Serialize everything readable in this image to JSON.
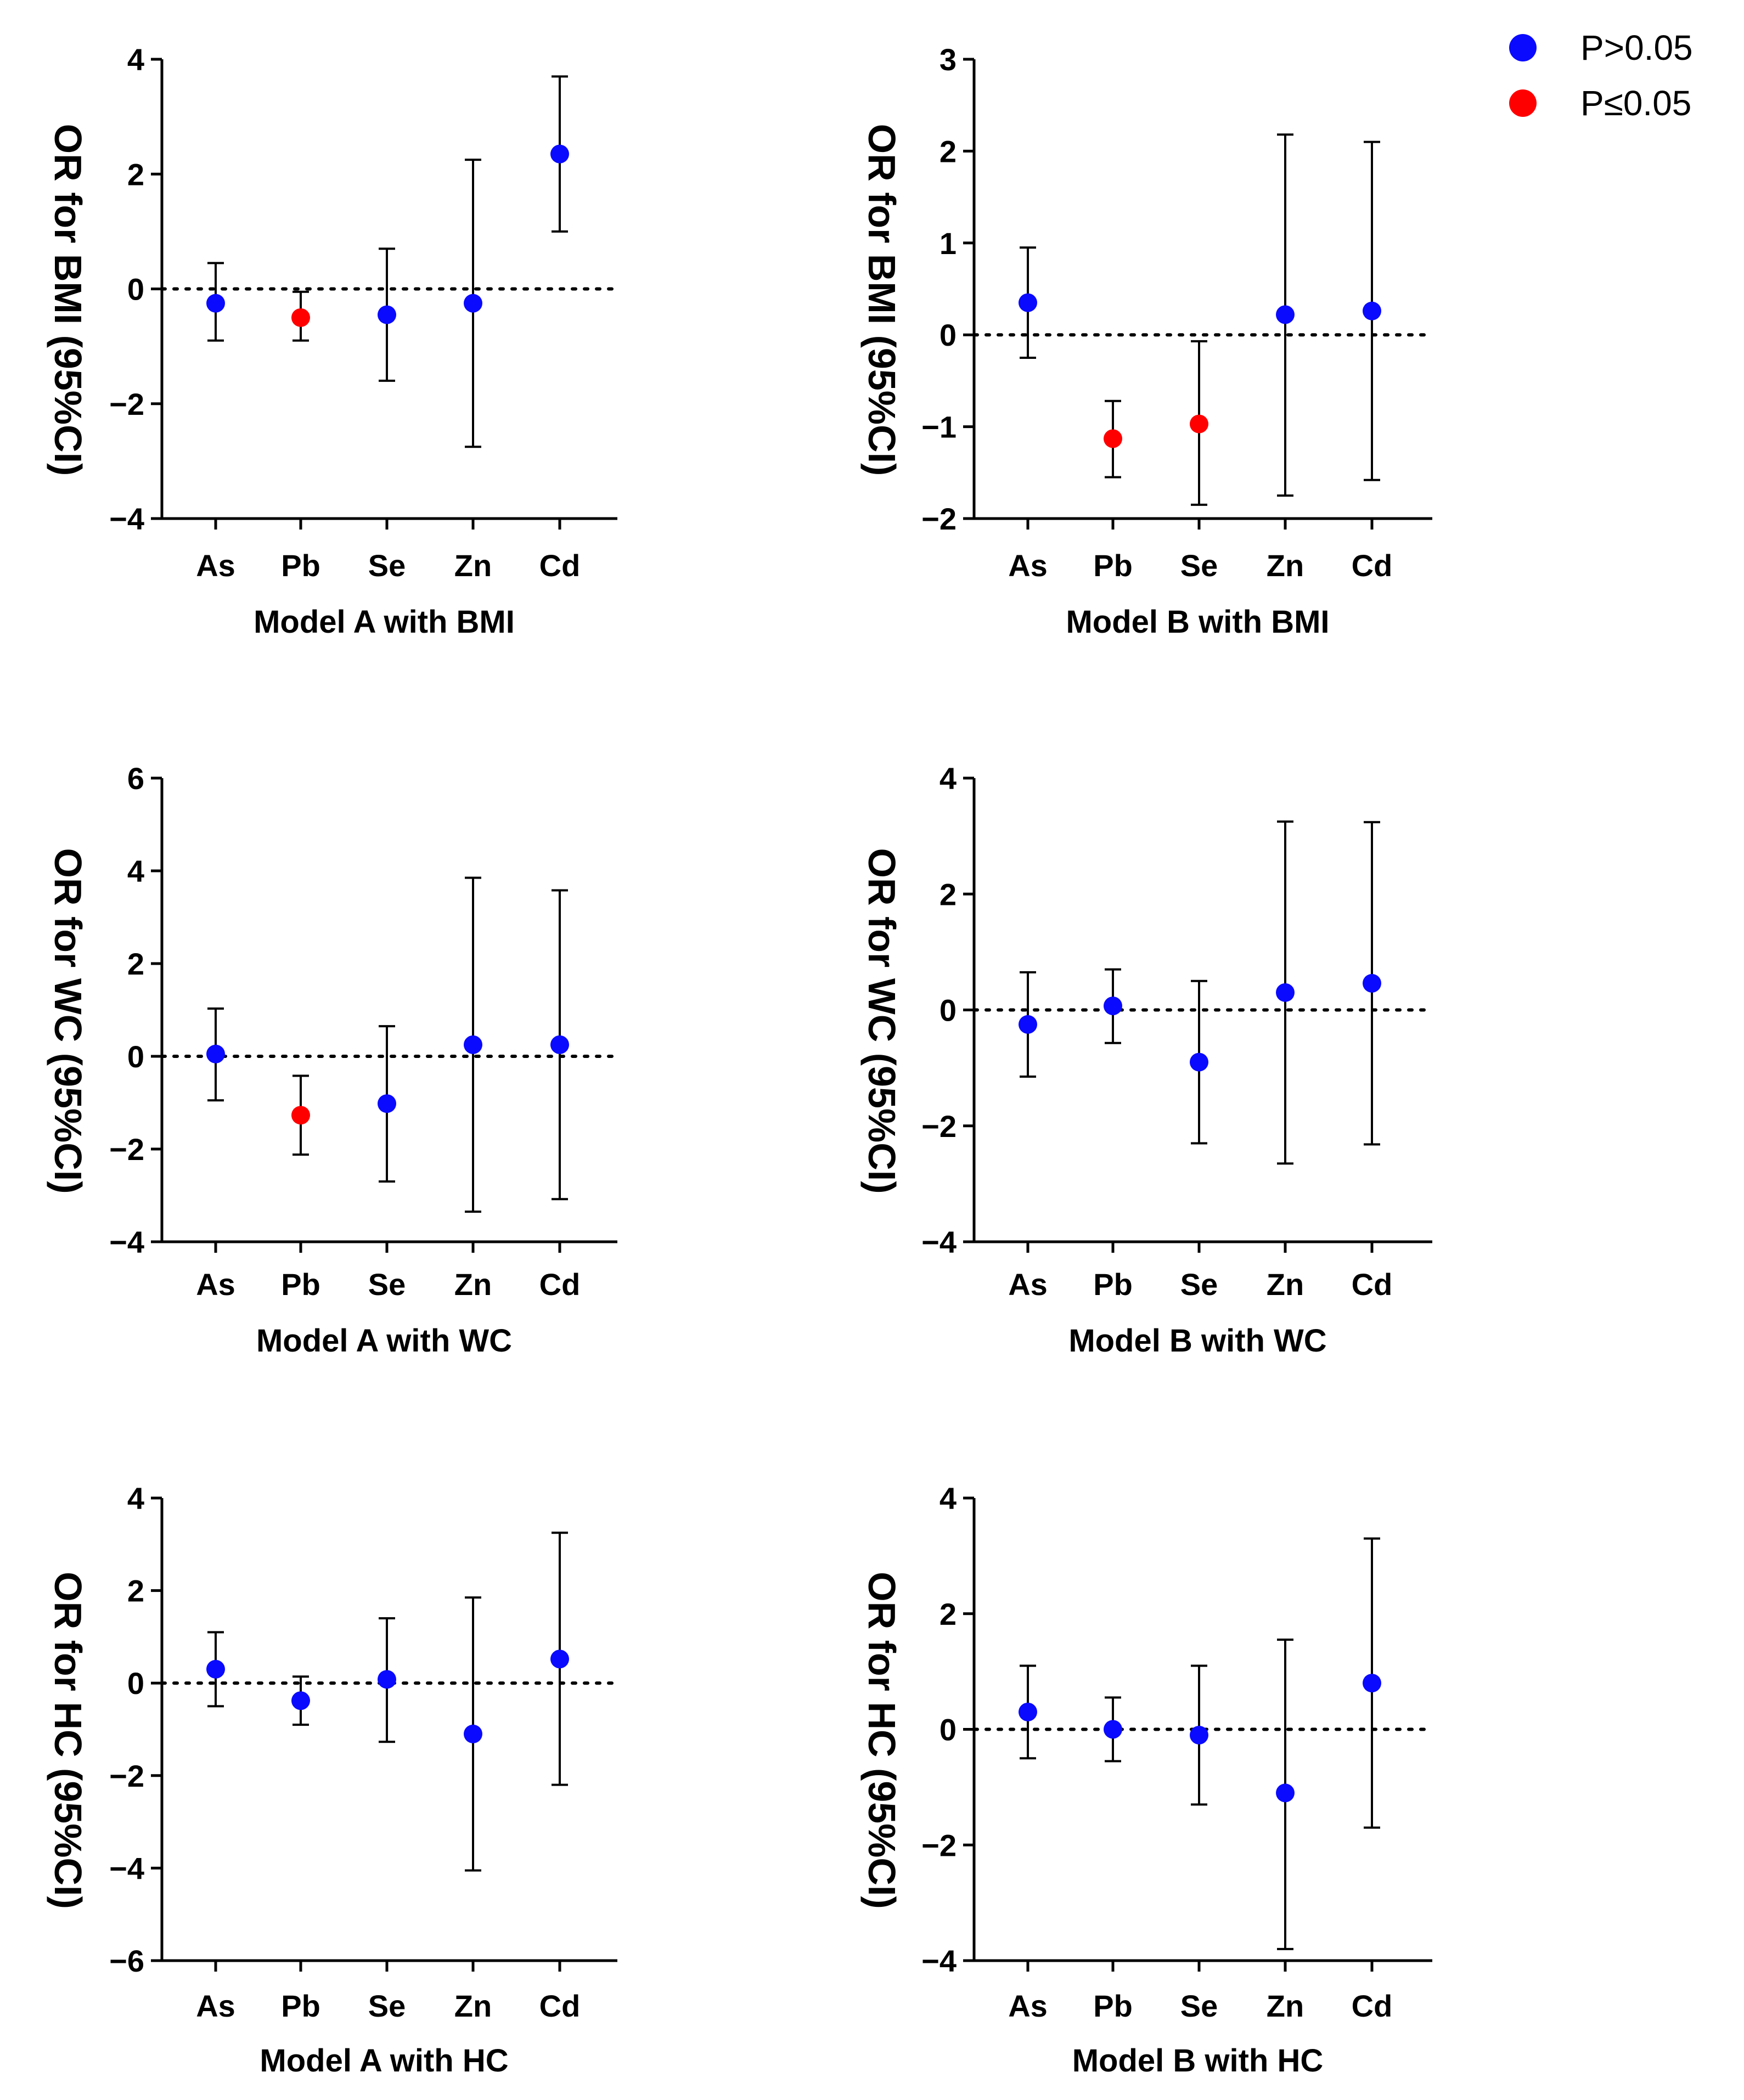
{
  "legend": {
    "items": [
      {
        "label": "P>0.05",
        "color": "#0a0aff"
      },
      {
        "label": "P≤0.05",
        "color": "#ff0000"
      }
    ]
  },
  "chart_data": [
    {
      "type": "scatter",
      "title": "",
      "xlabel": "Model A with BMI",
      "ylabel": "OR for BMI (95%CI)",
      "categories": [
        "As",
        "Pb",
        "Se",
        "Zn",
        "Cd"
      ],
      "ylim": [
        -4,
        4
      ],
      "yticks": [
        -4,
        -2,
        0,
        2,
        4
      ],
      "points": [
        {
          "cat": "As",
          "y": -0.25,
          "lo": -0.9,
          "hi": 0.45,
          "sig": false
        },
        {
          "cat": "Pb",
          "y": -0.5,
          "lo": -0.9,
          "hi": -0.05,
          "sig": true
        },
        {
          "cat": "Se",
          "y": -0.45,
          "lo": -1.6,
          "hi": 0.7,
          "sig": false
        },
        {
          "cat": "Zn",
          "y": -0.25,
          "lo": -2.75,
          "hi": 2.25,
          "sig": false
        },
        {
          "cat": "Cd",
          "y": 2.35,
          "lo": 1.0,
          "hi": 3.7,
          "sig": false
        }
      ]
    },
    {
      "type": "scatter",
      "title": "",
      "xlabel": "Model B with BMI",
      "ylabel": "OR for BMI (95%CI)",
      "categories": [
        "As",
        "Pb",
        "Se",
        "Zn",
        "Cd"
      ],
      "ylim": [
        -2,
        3
      ],
      "yticks": [
        -2,
        -1,
        0,
        1,
        2,
        3
      ],
      "points": [
        {
          "cat": "As",
          "y": 0.35,
          "lo": -0.25,
          "hi": 0.95,
          "sig": false
        },
        {
          "cat": "Pb",
          "y": -1.13,
          "lo": -1.55,
          "hi": -0.72,
          "sig": true
        },
        {
          "cat": "Se",
          "y": -0.97,
          "lo": -1.85,
          "hi": -0.07,
          "sig": true
        },
        {
          "cat": "Zn",
          "y": 0.22,
          "lo": -1.75,
          "hi": 2.18,
          "sig": false
        },
        {
          "cat": "Cd",
          "y": 0.26,
          "lo": -1.58,
          "hi": 2.1,
          "sig": false
        }
      ]
    },
    {
      "type": "scatter",
      "title": "",
      "xlabel": "Model A with WC",
      "ylabel": "OR for WC (95%CI)",
      "categories": [
        "As",
        "Pb",
        "Se",
        "Zn",
        "Cd"
      ],
      "ylim": [
        -4,
        6
      ],
      "yticks": [
        -4,
        -2,
        0,
        2,
        4,
        6
      ],
      "points": [
        {
          "cat": "As",
          "y": 0.05,
          "lo": -0.95,
          "hi": 1.03,
          "sig": false
        },
        {
          "cat": "Pb",
          "y": -1.27,
          "lo": -2.12,
          "hi": -0.42,
          "sig": true
        },
        {
          "cat": "Se",
          "y": -1.02,
          "lo": -2.7,
          "hi": 0.65,
          "sig": false
        },
        {
          "cat": "Zn",
          "y": 0.25,
          "lo": -3.35,
          "hi": 3.85,
          "sig": false
        },
        {
          "cat": "Cd",
          "y": 0.25,
          "lo": -3.08,
          "hi": 3.58,
          "sig": false
        }
      ]
    },
    {
      "type": "scatter",
      "title": "",
      "xlabel": "Model B with WC",
      "ylabel": "OR for WC (95%CI)",
      "categories": [
        "As",
        "Pb",
        "Se",
        "Zn",
        "Cd"
      ],
      "ylim": [
        -4,
        4
      ],
      "yticks": [
        -4,
        -2,
        0,
        2,
        4
      ],
      "points": [
        {
          "cat": "As",
          "y": -0.25,
          "lo": -1.15,
          "hi": 0.65,
          "sig": false
        },
        {
          "cat": "Pb",
          "y": 0.07,
          "lo": -0.57,
          "hi": 0.7,
          "sig": false
        },
        {
          "cat": "Se",
          "y": -0.9,
          "lo": -2.3,
          "hi": 0.5,
          "sig": false
        },
        {
          "cat": "Zn",
          "y": 0.3,
          "lo": -2.65,
          "hi": 3.25,
          "sig": false
        },
        {
          "cat": "Cd",
          "y": 0.46,
          "lo": -2.32,
          "hi": 3.24,
          "sig": false
        }
      ]
    },
    {
      "type": "scatter",
      "title": "",
      "xlabel": "Model A with HC",
      "ylabel": "OR for HC (95%CI)",
      "categories": [
        "As",
        "Pb",
        "Se",
        "Zn",
        "Cd"
      ],
      "ylim": [
        -6,
        4
      ],
      "yticks": [
        -6,
        -4,
        -2,
        0,
        2,
        4
      ],
      "points": [
        {
          "cat": "As",
          "y": 0.3,
          "lo": -0.5,
          "hi": 1.1,
          "sig": false
        },
        {
          "cat": "Pb",
          "y": -0.38,
          "lo": -0.9,
          "hi": 0.14,
          "sig": false
        },
        {
          "cat": "Se",
          "y": 0.08,
          "lo": -1.27,
          "hi": 1.4,
          "sig": false
        },
        {
          "cat": "Zn",
          "y": -1.1,
          "lo": -4.05,
          "hi": 1.85,
          "sig": false
        },
        {
          "cat": "Cd",
          "y": 0.52,
          "lo": -2.2,
          "hi": 3.25,
          "sig": false
        }
      ]
    },
    {
      "type": "scatter",
      "title": "",
      "xlabel": "Model B with HC",
      "ylabel": "OR for HC (95%CI)",
      "categories": [
        "As",
        "Pb",
        "Se",
        "Zn",
        "Cd"
      ],
      "ylim": [
        -4,
        4
      ],
      "yticks": [
        -4,
        -2,
        0,
        2,
        4
      ],
      "points": [
        {
          "cat": "As",
          "y": 0.3,
          "lo": -0.5,
          "hi": 1.1,
          "sig": false
        },
        {
          "cat": "Pb",
          "y": 0.0,
          "lo": -0.55,
          "hi": 0.55,
          "sig": false
        },
        {
          "cat": "Se",
          "y": -0.1,
          "lo": -1.3,
          "hi": 1.1,
          "sig": false
        },
        {
          "cat": "Zn",
          "y": -1.1,
          "lo": -3.8,
          "hi": 1.55,
          "sig": false
        },
        {
          "cat": "Cd",
          "y": 0.8,
          "lo": -1.7,
          "hi": 3.3,
          "sig": false
        }
      ]
    }
  ]
}
